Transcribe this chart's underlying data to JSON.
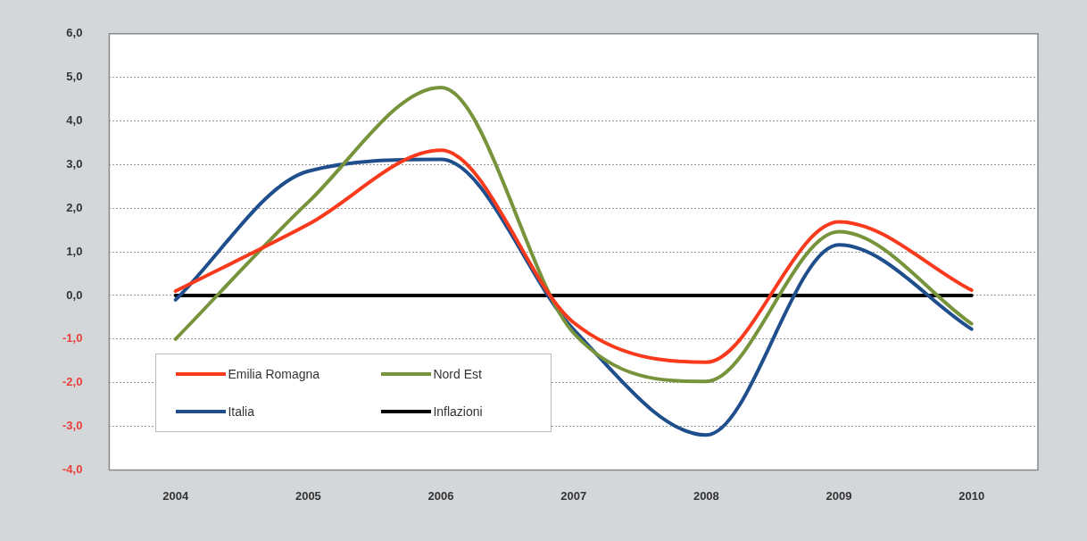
{
  "chart_data": {
    "type": "line",
    "categories": [
      "2004",
      "2005",
      "2006",
      "2007",
      "2008",
      "2009",
      "2010"
    ],
    "series": [
      {
        "name": "Emilia Romagna",
        "color": "#fa3a1c",
        "values": [
          0.1,
          1.63,
          3.33,
          -0.62,
          -1.53,
          1.69,
          0.12
        ]
      },
      {
        "name": "Nord Est",
        "color": "#77933c",
        "values": [
          -1.0,
          2.14,
          4.77,
          -0.86,
          -1.97,
          1.46,
          -0.65
        ]
      },
      {
        "name": "Italia",
        "color": "#1f4e8c",
        "values": [
          -0.1,
          2.85,
          3.12,
          -0.78,
          -3.2,
          1.16,
          -0.77
        ]
      },
      {
        "name": "Inflazioni",
        "color": "#000000",
        "values": [
          0,
          0,
          0,
          0,
          0,
          0,
          0
        ]
      }
    ],
    "ylim": [
      -4,
      6
    ],
    "yticks": [
      {
        "value": -4,
        "label": "-4,0"
      },
      {
        "value": -3,
        "label": "-3,0"
      },
      {
        "value": -2,
        "label": "-2,0"
      },
      {
        "value": -1,
        "label": "-1,0"
      },
      {
        "value": 0,
        "label": "0,0"
      },
      {
        "value": 1,
        "label": "1,0"
      },
      {
        "value": 2,
        "label": "2,0"
      },
      {
        "value": 3,
        "label": "3,0"
      },
      {
        "value": 4,
        "label": "4,0"
      },
      {
        "value": 5,
        "label": "5,0"
      },
      {
        "value": 6,
        "label": "6,0"
      }
    ],
    "grid": "y",
    "legend": "bottom left",
    "marker": "none",
    "line_style": "solid"
  }
}
